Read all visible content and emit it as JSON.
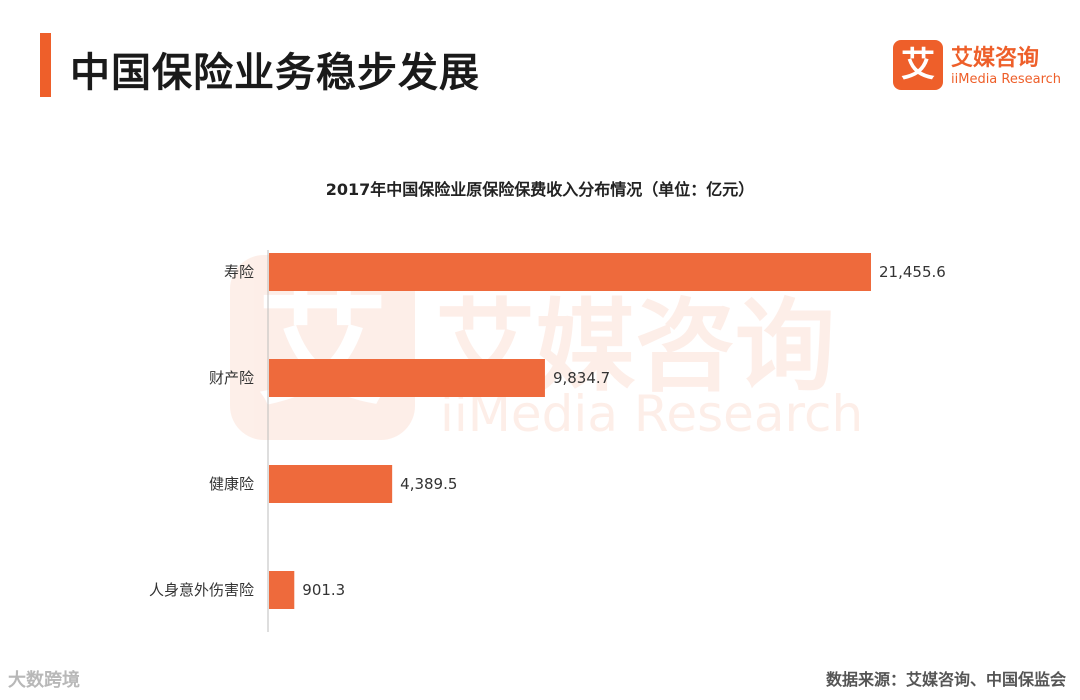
{
  "header": {
    "title": "中国保险业务稳步发展",
    "accent_color": "#ee5f2a"
  },
  "logo": {
    "mark": "艾",
    "name_cn": "艾媒咨询",
    "name_en": "iiMedia Research"
  },
  "watermark": {
    "mark": "艾",
    "name_cn": "艾媒咨询",
    "name_en": "iiMedia Research"
  },
  "footer": {
    "source": "数据来源：艾媒咨询、中国保监会",
    "corner_text": "大数跨境"
  },
  "chart_data": {
    "type": "bar",
    "orientation": "horizontal",
    "title": "2017年中国保险业原保险保费收入分布情况（单位：亿元）",
    "categories": [
      "寿险",
      "财产险",
      "健康险",
      "人身意外伤害险"
    ],
    "values": [
      21455.6,
      9834.7,
      4389.5,
      901.3
    ],
    "value_labels": [
      "21,455.6",
      "9,834.7",
      "4,389.5",
      "901.3"
    ],
    "bar_color": "#ee6a3c",
    "xlim": [
      0,
      21455.6
    ],
    "grid": false,
    "legend": "none"
  }
}
